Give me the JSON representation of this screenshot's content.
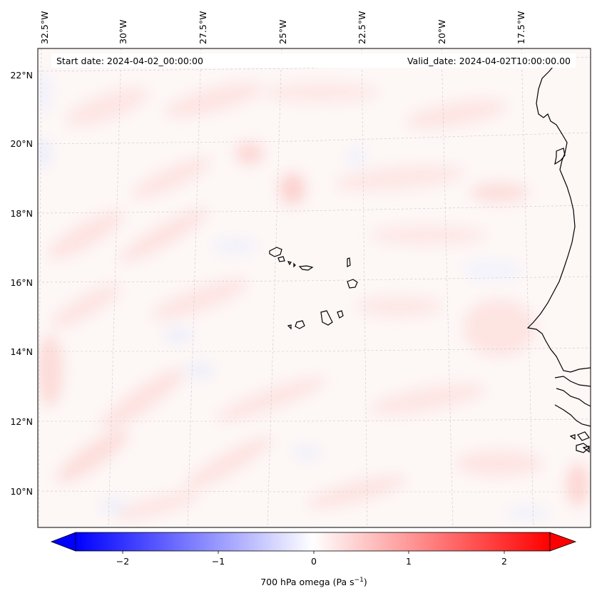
{
  "header": {
    "start_date": "Start date: 2024-04-02_00:00:00",
    "valid_date": "Valid_date: 2024-04-02T10:00:00.00"
  },
  "map": {
    "top_longitude_labels": [
      "32.5°W",
      "30°W",
      "27.5°W",
      "25°W",
      "22.5°W",
      "20°W",
      "17.5°W"
    ],
    "left_latitude_labels": [
      "22°N",
      "20°N",
      "18°N",
      "16°N",
      "14°N",
      "12°N",
      "10°N"
    ],
    "gridlines": "dashed light gray"
  },
  "colorbar": {
    "tick_labels": [
      "−2",
      "−1",
      "0",
      "1",
      "2"
    ],
    "label": "700 hPa omega (Pa s",
    "label_sup": "−1",
    "label_close": ")",
    "colors": {
      "negative": "#0000ff",
      "zero": "#ffffff",
      "positive": "#ff0000"
    },
    "range": [
      -2.6,
      2.6
    ],
    "extend": "both"
  }
}
